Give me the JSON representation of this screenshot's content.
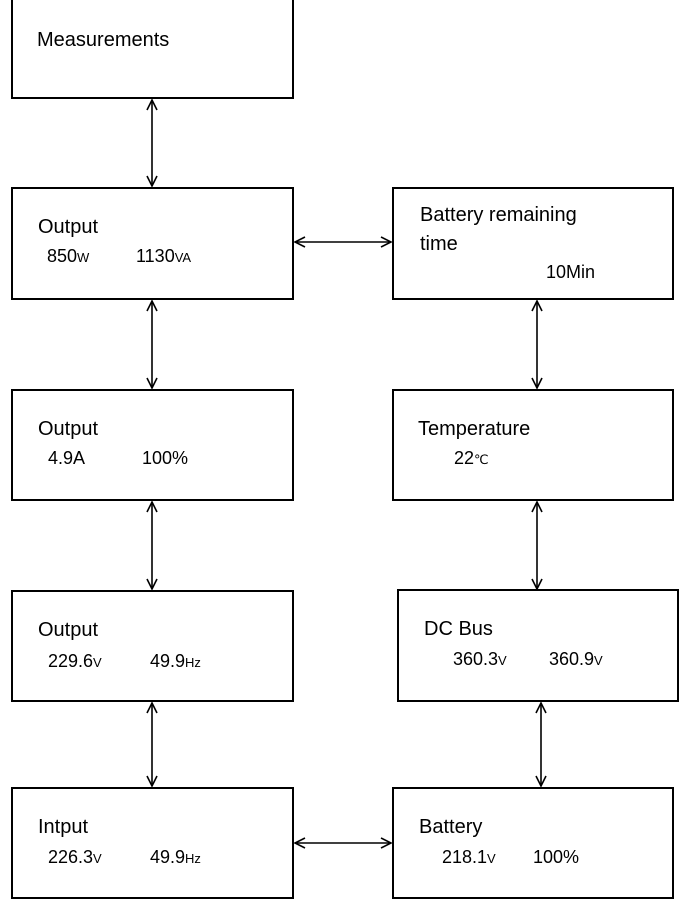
{
  "measurements": {
    "title": "Measurements"
  },
  "output_power": {
    "title": "Output",
    "watts": "850",
    "watts_unit": "W",
    "va": "1130",
    "va_unit": "VA"
  },
  "battery_time": {
    "title_line1": "Battery remaining",
    "title_line2": "time",
    "value": "10Min"
  },
  "output_current": {
    "title": "Output",
    "current": "4.9A",
    "load": "100%"
  },
  "temperature": {
    "title": "Temperature",
    "value": "22",
    "unit": "℃"
  },
  "output_voltage": {
    "title": "Output",
    "voltage": "229.6",
    "voltage_unit": "V",
    "frequency": "49.9",
    "frequency_unit": "Hz"
  },
  "dc_bus": {
    "title": "DC Bus",
    "value1": "360.3",
    "value1_unit": "V",
    "value2": "360.9",
    "value2_unit": "V"
  },
  "input": {
    "title": "Intput",
    "voltage": "226.3",
    "voltage_unit": "V",
    "frequency": "49.9",
    "frequency_unit": "Hz"
  },
  "battery": {
    "title": "Battery",
    "voltage": "218.1",
    "voltage_unit": "V",
    "capacity": "100%"
  }
}
